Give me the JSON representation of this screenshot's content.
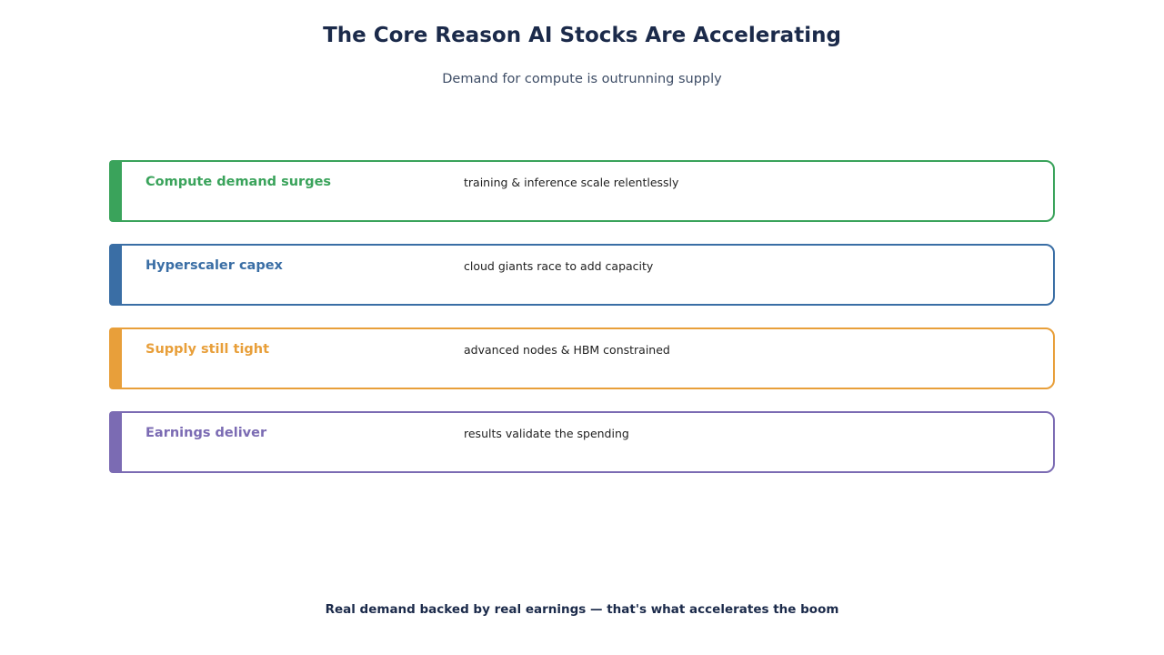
{
  "title": "The Core Reason AI Stocks Are Accelerating",
  "subtitle": "Demand for compute is outrunning supply",
  "rows": [
    {
      "label": "Compute demand surges",
      "desc": "training & inference scale relentlessly",
      "color": "#3aa35b"
    },
    {
      "label": "Hyperscaler capex",
      "desc": "cloud giants race to add capacity",
      "color": "#3a6ea5"
    },
    {
      "label": "Supply still tight",
      "desc": "advanced nodes & HBM constrained",
      "color": "#e89f3a"
    },
    {
      "label": "Earnings deliver",
      "desc": "results validate the spending",
      "color": "#7b6bb3"
    }
  ],
  "footer": "Real demand backed by real earnings — that's what accelerates the boom"
}
